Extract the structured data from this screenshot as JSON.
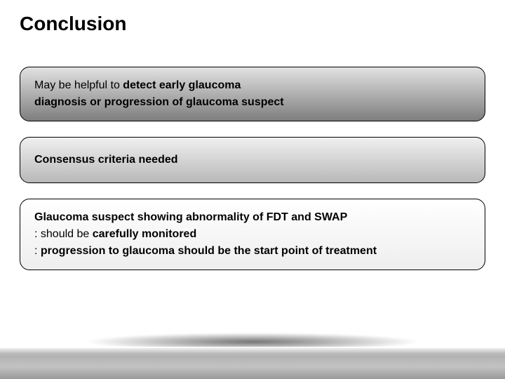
{
  "title": "Conclusion",
  "boxes": {
    "b1": {
      "lines": [
        {
          "prefix": "May be helpful to ",
          "bold": "detect early glaucoma"
        },
        {
          "prefix": "",
          "bold": "diagnosis or progression of  glaucoma suspect"
        }
      ],
      "bg_from": "#e2e2e2",
      "bg_to": "#7e7e7e"
    },
    "b2": {
      "lines": [
        {
          "prefix": "",
          "bold": "Consensus criteria needed"
        }
      ],
      "bg_from": "#f0f0f0",
      "bg_to": "#b8b8b8"
    },
    "b3": {
      "lines": [
        {
          "prefix": "",
          "bold": "Glaucoma suspect showing abnormality of FDT and SWAP"
        },
        {
          "prefix": " : should be ",
          "bold": "carefully monitored"
        },
        {
          "prefix": " : ",
          "bold": "progression to glaucoma should be the start point of treatment"
        }
      ],
      "bg_from": "#ffffff",
      "bg_to": "#eeeeee"
    }
  },
  "style": {
    "title_fontsize": 28,
    "body_fontsize": 16,
    "border_radius": 14,
    "border_color": "#000000",
    "text_color": "#000000",
    "page_bg": "#ffffff",
    "floor_colors": [
      "#bfbfbf",
      "#b4b4b4",
      "#c2c2c2",
      "#9a9a9a"
    ]
  }
}
